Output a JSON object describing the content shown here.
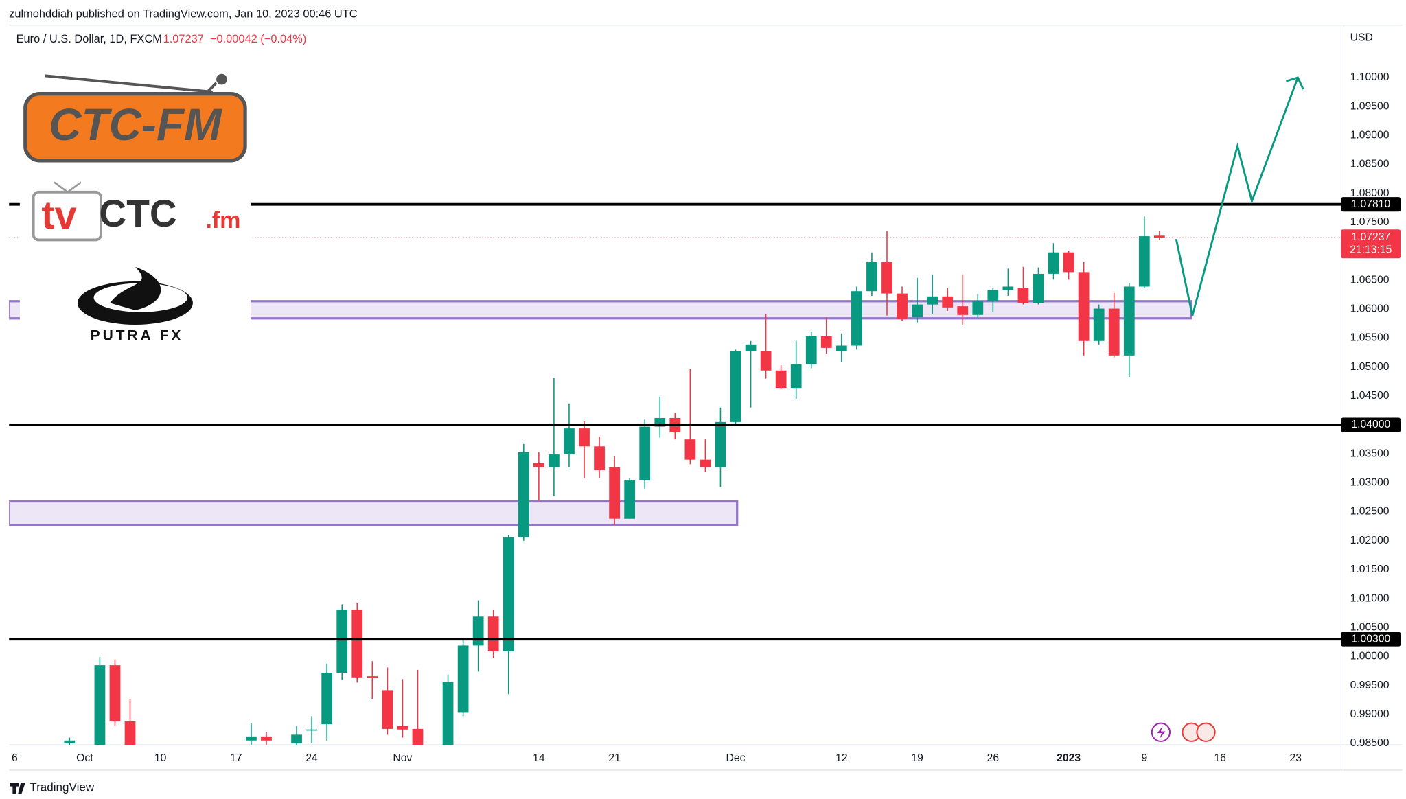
{
  "header": {
    "publisher": "zulmohddiah published on TradingView.com, Jan 10, 2023 00:46 UTC",
    "footer": "TradingView"
  },
  "logos": {
    "first": "CTC-FM",
    "second_a": "tv",
    "second_b": "CTC",
    "second_c": ".fm",
    "third": "PUTRA FX"
  },
  "chart_data": {
    "type": "candlestick",
    "symbol": "Euro / U.S. Dollar, 1D, FXCM",
    "last_price": 1.07237,
    "change": "−0.00042 (−0.04%)",
    "countdown": "21:13:15",
    "currency": "USD",
    "up_color": "#089981",
    "down_color": "#f23645",
    "x": [
      4,
      6,
      7,
      8,
      16,
      17,
      19,
      20,
      21,
      22,
      23,
      24,
      25,
      26,
      27,
      29,
      30,
      31,
      32,
      33,
      34,
      35,
      36,
      37,
      38,
      39,
      40,
      41,
      42,
      43,
      44,
      45,
      46,
      47,
      48,
      49,
      50,
      51,
      52,
      53,
      54,
      55,
      56,
      57,
      58,
      59,
      60,
      61,
      62,
      63,
      64,
      65,
      66,
      67,
      68,
      69,
      70,
      71,
      72,
      73,
      74,
      75,
      76
    ],
    "open": [
      0.985,
      0.98,
      0.9985,
      0.9888,
      0.9855,
      0.9862,
      0.985,
      0.9872,
      0.9883,
      0.9972,
      1.0081,
      0.9966,
      0.9942,
      0.988,
      0.9875,
      0.98,
      0.9904,
      1.0019,
      1.0069,
      1.0009,
      1.0206,
      1.0334,
      1.0327,
      1.0349,
      1.0394,
      1.0363,
      1.0327,
      1.0238,
      1.0304,
      1.0397,
      1.0412,
      1.0375,
      1.034,
      1.0327,
      1.0405,
      1.0527,
      1.0527,
      1.0494,
      1.0464,
      1.0505,
      1.0553,
      1.0527,
      1.0537,
      1.0631,
      1.0681,
      1.0627,
      1.0586,
      1.0608,
      1.0622,
      1.0605,
      1.059,
      1.0614,
      1.0633,
      1.0636,
      1.0611,
      1.0661,
      1.0698,
      1.0664,
      1.0545,
      1.0601,
      1.052,
      1.0639,
      1.0727
    ],
    "high": [
      0.986,
      0.9999,
      0.9995,
      0.9927,
      0.9885,
      0.987,
      0.988,
      0.9897,
      0.9988,
      1.009,
      1.0093,
      0.9992,
      0.9981,
      0.9961,
      0.9977,
      0.9969,
      1.0028,
      1.0097,
      1.0081,
      1.021,
      1.0367,
      1.0353,
      1.0481,
      1.0437,
      1.0406,
      1.038,
      1.0346,
      1.0308,
      1.0409,
      1.0449,
      1.0421,
      1.0497,
      1.0375,
      1.043,
      1.053,
      1.0545,
      1.0592,
      1.0503,
      1.0545,
      1.0561,
      1.0586,
      1.0558,
      1.0639,
      1.0698,
      1.0735,
      1.0639,
      1.0654,
      1.066,
      1.0636,
      1.066,
      1.0626,
      1.0636,
      1.067,
      1.0673,
      1.0672,
      1.0714,
      1.0701,
      1.0682,
      1.0608,
      1.0628,
      1.0645,
      1.076,
      1.0735
    ],
    "low": [
      0.983,
      0.978,
      0.988,
      0.978,
      0.984,
      0.9845,
      0.984,
      0.985,
      0.9855,
      0.996,
      0.9955,
      0.9927,
      0.9865,
      0.986,
      0.98,
      0.978,
      0.9897,
      0.9974,
      0.9997,
      0.9935,
      1.02,
      1.0269,
      1.0277,
      1.0327,
      1.0308,
      1.0308,
      1.0227,
      1.0238,
      1.029,
      1.0378,
      1.0375,
      1.0332,
      1.0319,
      1.0293,
      1.0399,
      1.043,
      1.048,
      1.0461,
      1.0445,
      1.0498,
      1.0523,
      1.0508,
      1.053,
      1.0623,
      1.0589,
      1.0579,
      1.0577,
      1.0592,
      1.0597,
      1.0573,
      1.0586,
      1.0595,
      1.0623,
      1.0608,
      1.0608,
      1.0651,
      1.0651,
      1.052,
      1.0539,
      1.0517,
      1.0483,
      1.0636,
      1.072
    ],
    "close": [
      0.9855,
      0.9985,
      0.9888,
      0.9795,
      0.9862,
      0.9855,
      0.9865,
      0.9874,
      0.9972,
      1.0081,
      0.9964,
      0.9963,
      0.9875,
      0.9874,
      0.981,
      0.9956,
      1.0019,
      1.0069,
      1.0009,
      1.0206,
      1.0353,
      1.0327,
      1.0349,
      1.0394,
      1.0363,
      1.0322,
      1.0238,
      1.0304,
      1.0397,
      1.0412,
      1.0387,
      1.034,
      1.0327,
      1.0405,
      1.0527,
      1.0539,
      1.0494,
      1.0464,
      1.0505,
      1.0553,
      1.0533,
      1.0537,
      1.0631,
      1.0681,
      1.0627,
      1.0583,
      1.0608,
      1.0622,
      1.0603,
      1.059,
      1.0614,
      1.0633,
      1.0639,
      1.0611,
      1.0661,
      1.0698,
      1.0664,
      1.0545,
      1.0601,
      1.052,
      1.0639,
      1.0726,
      1.07237
    ],
    "xlim": [
      0,
      88
    ],
    "xticks": [
      {
        "value": 0,
        "label": "6"
      },
      {
        "value": 5,
        "label": "Oct"
      },
      10,
      {
        "value": 15,
        "label": "17"
      },
      {
        "value": 20,
        "label": "24"
      },
      {
        "value": 26,
        "label": "Nov"
      },
      {
        "value": 35,
        "label": "14"
      },
      {
        "value": 40,
        "label": "21"
      },
      {
        "value": 48,
        "label": "Dec"
      },
      {
        "value": 55,
        "label": "12"
      },
      {
        "value": 60,
        "label": "19"
      },
      {
        "value": 65,
        "label": "26"
      },
      {
        "value": 70,
        "label": "2023"
      },
      {
        "value": 75,
        "label": "9"
      },
      {
        "value": 80,
        "label": "16"
      },
      {
        "value": 85,
        "label": "23"
      }
    ],
    "ylim": [
      0.98474,
      1.10872
    ],
    "yticks": [
      {
        "value": 0.985,
        "label": "0.98500"
      },
      {
        "value": 0.99,
        "label": "0.99000"
      },
      {
        "value": 0.995,
        "label": "0.99500"
      },
      {
        "value": 1.0,
        "label": "1.00000"
      },
      {
        "value": 1.005,
        "label": "1.00500"
      },
      {
        "value": 1.01,
        "label": "1.01000"
      },
      {
        "value": 1.015,
        "label": "1.01500"
      },
      {
        "value": 1.02,
        "label": "1.02000"
      },
      {
        "value": 1.025,
        "label": "1.02500"
      },
      {
        "value": 1.03,
        "label": "1.03000"
      },
      {
        "value": 1.035,
        "label": "1.03500"
      },
      {
        "value": 1.04,
        "label": "1.04000"
      },
      {
        "value": 1.045,
        "label": "1.04500"
      },
      {
        "value": 1.05,
        "label": "1.05000"
      },
      {
        "value": 1.055,
        "label": "1.05500"
      },
      {
        "value": 1.06,
        "label": "1.06000"
      },
      {
        "value": 1.065,
        "label": "1.06500"
      },
      {
        "value": 1.07,
        "label": "1.07000"
      },
      {
        "value": 1.075,
        "label": "1.07500"
      },
      {
        "value": 1.08,
        "label": "1.08000"
      },
      {
        "value": 1.085,
        "label": "1.08500"
      },
      {
        "value": 1.09,
        "label": "1.09000"
      },
      {
        "value": 1.095,
        "label": "1.09500"
      },
      {
        "value": 1.1,
        "label": "1.10000"
      }
    ],
    "grid": false,
    "levels": [
      {
        "value": 1.0781,
        "label": "1.07810"
      },
      {
        "value": 1.04,
        "label": "1.04000"
      },
      {
        "value": 1.003,
        "label": "1.00300"
      }
    ],
    "level_color": "#000000",
    "zones": [
      {
        "x": [
          0,
          78.1
        ],
        "y": [
          1.05841,
          1.06137
        ]
      },
      {
        "x": [
          0,
          48.1
        ],
        "y": [
          1.02274,
          1.02679
        ]
      }
    ],
    "zone_color": "#9575cd"
  }
}
